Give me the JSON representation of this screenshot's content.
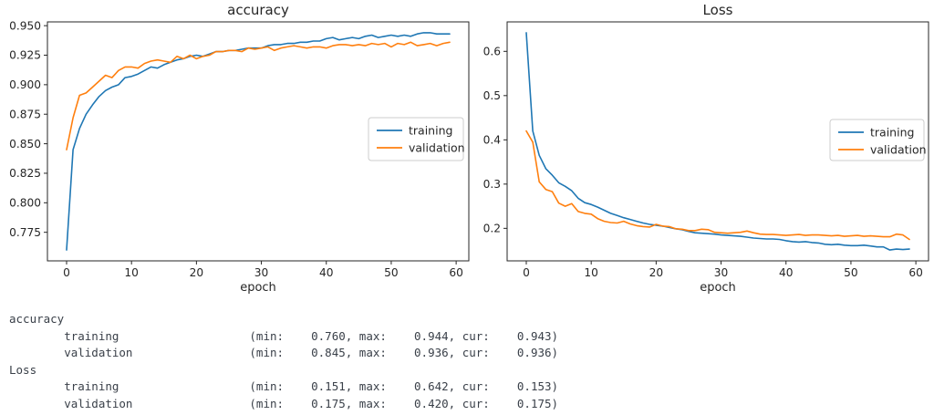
{
  "chart_data": [
    {
      "type": "line",
      "title": "accuracy",
      "xlabel": "epoch",
      "x_range": [
        0,
        59
      ],
      "xlim": [
        -2.95,
        61.95
      ],
      "ylim": [
        0.7508,
        0.9532
      ],
      "xticks": [
        0,
        10,
        20,
        30,
        40,
        50,
        60
      ],
      "ytick_labels": [
        "0.775",
        "0.800",
        "0.825",
        "0.850",
        "0.875",
        "0.900",
        "0.925",
        "0.950"
      ],
      "grid": false,
      "legend": {
        "position": "center right",
        "entries": [
          "training",
          "validation"
        ]
      },
      "series": [
        {
          "name": "training",
          "color": "#1f77b4",
          "values": [
            0.76,
            0.845,
            0.863,
            0.875,
            0.883,
            0.89,
            0.895,
            0.898,
            0.9,
            0.906,
            0.907,
            0.909,
            0.912,
            0.915,
            0.914,
            0.917,
            0.919,
            0.921,
            0.922,
            0.924,
            0.925,
            0.924,
            0.926,
            0.928,
            0.928,
            0.929,
            0.929,
            0.93,
            0.931,
            0.931,
            0.931,
            0.933,
            0.934,
            0.934,
            0.935,
            0.935,
            0.936,
            0.936,
            0.937,
            0.937,
            0.939,
            0.94,
            0.938,
            0.939,
            0.94,
            0.939,
            0.941,
            0.942,
            0.94,
            0.941,
            0.942,
            0.941,
            0.942,
            0.941,
            0.943,
            0.944,
            0.944,
            0.943,
            0.943,
            0.943
          ]
        },
        {
          "name": "validation",
          "color": "#ff7f0e",
          "values": [
            0.845,
            0.872,
            0.891,
            0.893,
            0.898,
            0.903,
            0.908,
            0.906,
            0.912,
            0.915,
            0.915,
            0.914,
            0.918,
            0.92,
            0.921,
            0.92,
            0.919,
            0.924,
            0.922,
            0.925,
            0.922,
            0.924,
            0.925,
            0.928,
            0.928,
            0.929,
            0.929,
            0.928,
            0.931,
            0.93,
            0.931,
            0.932,
            0.929,
            0.931,
            0.932,
            0.933,
            0.932,
            0.931,
            0.932,
            0.932,
            0.931,
            0.933,
            0.934,
            0.934,
            0.933,
            0.934,
            0.933,
            0.935,
            0.934,
            0.935,
            0.932,
            0.935,
            0.934,
            0.936,
            0.933,
            0.934,
            0.935,
            0.933,
            0.935,
            0.936
          ]
        }
      ]
    },
    {
      "type": "line",
      "title": "Loss",
      "xlabel": "epoch",
      "x_range": [
        0,
        59
      ],
      "xlim": [
        -2.95,
        61.95
      ],
      "ylim": [
        0.1265,
        0.6666
      ],
      "xticks": [
        0,
        10,
        20,
        30,
        40,
        50,
        60
      ],
      "ytick_labels": [
        "0.2",
        "0.3",
        "0.4",
        "0.5",
        "0.6"
      ],
      "grid": false,
      "legend": {
        "position": "center right",
        "entries": [
          "training",
          "validation"
        ]
      },
      "series": [
        {
          "name": "training",
          "color": "#1f77b4",
          "values": [
            0.642,
            0.42,
            0.365,
            0.335,
            0.32,
            0.303,
            0.295,
            0.285,
            0.268,
            0.258,
            0.254,
            0.248,
            0.241,
            0.234,
            0.229,
            0.224,
            0.22,
            0.216,
            0.212,
            0.209,
            0.207,
            0.205,
            0.202,
            0.199,
            0.197,
            0.193,
            0.19,
            0.189,
            0.188,
            0.187,
            0.185,
            0.184,
            0.183,
            0.182,
            0.18,
            0.178,
            0.177,
            0.176,
            0.176,
            0.175,
            0.172,
            0.17,
            0.169,
            0.17,
            0.168,
            0.167,
            0.164,
            0.163,
            0.164,
            0.162,
            0.161,
            0.161,
            0.162,
            0.16,
            0.158,
            0.158,
            0.151,
            0.153,
            0.152,
            0.153
          ]
        },
        {
          "name": "validation",
          "color": "#ff7f0e",
          "values": [
            0.42,
            0.395,
            0.305,
            0.288,
            0.283,
            0.257,
            0.25,
            0.256,
            0.238,
            0.234,
            0.232,
            0.222,
            0.216,
            0.213,
            0.212,
            0.216,
            0.21,
            0.206,
            0.204,
            0.203,
            0.209,
            0.205,
            0.204,
            0.199,
            0.198,
            0.195,
            0.195,
            0.198,
            0.197,
            0.191,
            0.19,
            0.189,
            0.19,
            0.191,
            0.194,
            0.19,
            0.187,
            0.186,
            0.186,
            0.185,
            0.184,
            0.185,
            0.186,
            0.184,
            0.185,
            0.185,
            0.184,
            0.183,
            0.184,
            0.182,
            0.183,
            0.184,
            0.182,
            0.183,
            0.182,
            0.181,
            0.181,
            0.187,
            0.185,
            0.175
          ]
        }
      ]
    }
  ],
  "summary": {
    "lines": [
      "accuracy",
      "        training                   (min:    0.760, max:    0.944, cur:    0.943)",
      "        validation                 (min:    0.845, max:    0.936, cur:    0.936)",
      "Loss",
      "        training                   (min:    0.151, max:    0.642, cur:    0.153)",
      "        validation                 (min:    0.175, max:    0.420, cur:    0.175)"
    ],
    "stats": {
      "accuracy": {
        "training": {
          "min": 0.76,
          "max": 0.944,
          "cur": 0.943
        },
        "validation": {
          "min": 0.845,
          "max": 0.936,
          "cur": 0.936
        }
      },
      "Loss": {
        "training": {
          "min": 0.151,
          "max": 0.642,
          "cur": 0.153
        },
        "validation": {
          "min": 0.175,
          "max": 0.42,
          "cur": 0.175
        }
      }
    }
  },
  "colors": {
    "training": "#1f77b4",
    "validation": "#ff7f0e",
    "chart_text": "#262626",
    "summary_text": "#3a4049",
    "legend_border": "#cccccc",
    "background": "#ffffff"
  }
}
